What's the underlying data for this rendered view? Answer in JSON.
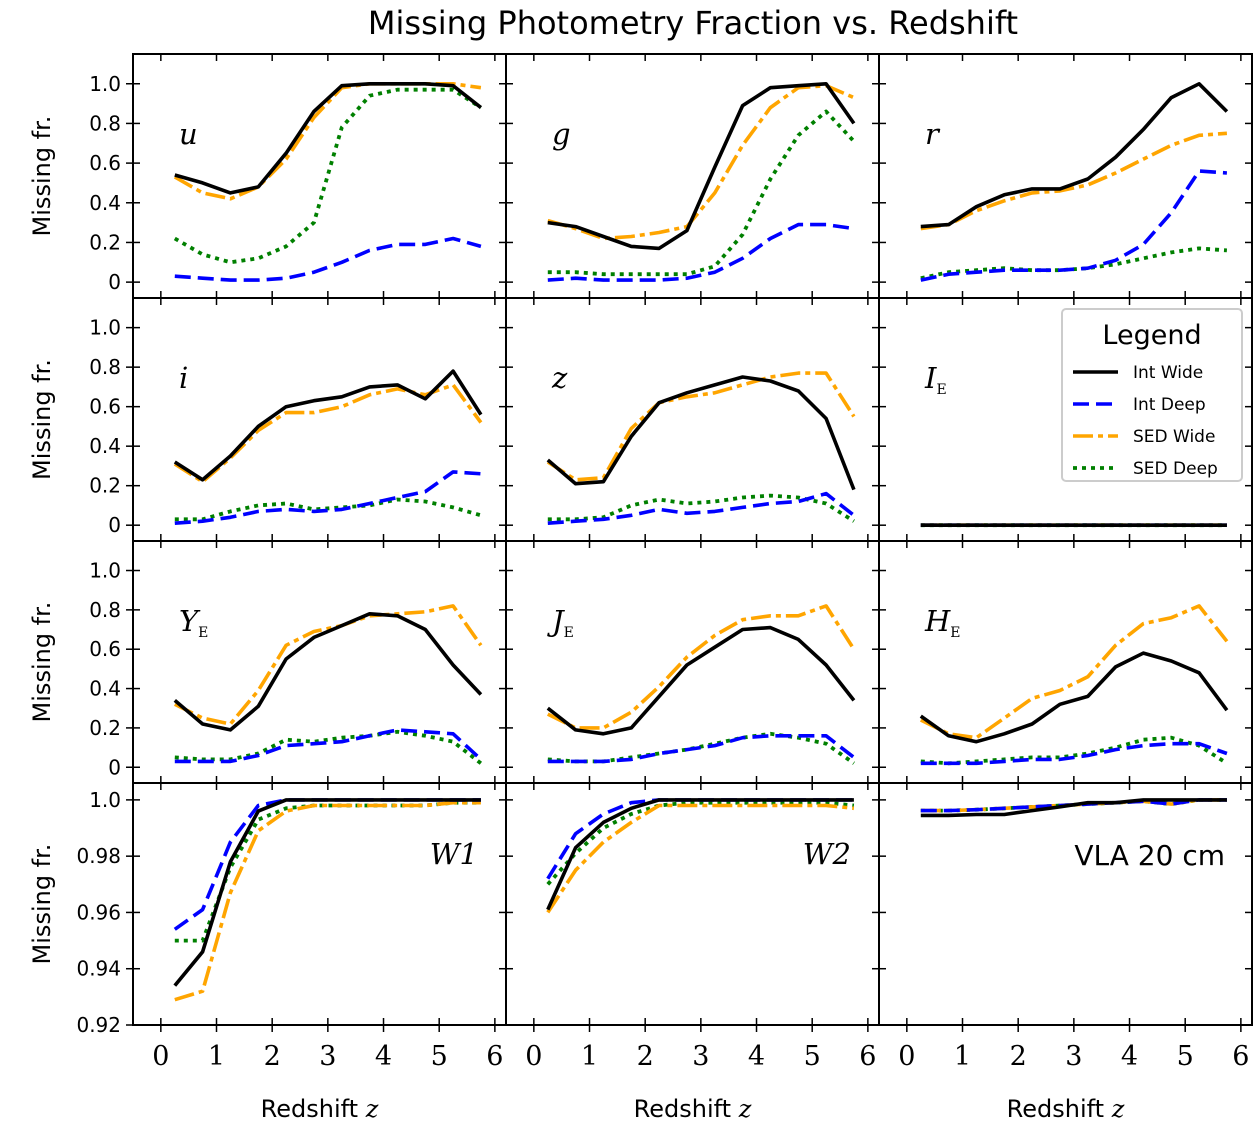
{
  "title": "Missing Photometry Fraction vs. Redshift",
  "axis_labels": {
    "ylabel": "Missing fr.",
    "xlabel_text": "Redshift",
    "xlabel_symbol": "z"
  },
  "legend": {
    "title": "Legend",
    "entries": [
      "Int Wide",
      "Int Deep",
      "SED Wide",
      "SED Deep"
    ],
    "placement": "top-right of the I_E panel"
  },
  "colors": {
    "Int Wide": "#000000",
    "Int Deep": "#0000ff",
    "SED Wide": "#ffa500",
    "SED Deep": "#008000"
  },
  "chart_data": {
    "type": "line",
    "layout": "4x3 grid of panels, shared x axis per column, shared y axis per row",
    "x": [
      0.25,
      0.75,
      1.25,
      1.75,
      2.25,
      2.75,
      3.25,
      3.75,
      4.25,
      4.75,
      5.25,
      5.75
    ],
    "xlim": [
      -0.5,
      6.2
    ],
    "xticks": [
      "0",
      "1",
      "2",
      "3",
      "4",
      "5",
      "6"
    ],
    "rows": [
      {
        "ylim": [
          -0.08,
          1.15
        ],
        "yticks": [
          "0",
          "0.2",
          "0.4",
          "0.6",
          "0.8",
          "1.0"
        ]
      },
      {
        "ylim": [
          -0.08,
          1.15
        ],
        "yticks": [
          "0",
          "0.2",
          "0.4",
          "0.6",
          "0.8",
          "1.0"
        ]
      },
      {
        "ylim": [
          -0.08,
          1.15
        ],
        "yticks": [
          "0",
          "0.2",
          "0.4",
          "0.6",
          "0.8",
          "1.0"
        ]
      },
      {
        "ylim": [
          0.92,
          1.006
        ],
        "yticks": [
          "0.92",
          "0.94",
          "0.96",
          "0.98",
          "1.0"
        ]
      }
    ],
    "panels": [
      {
        "label_main": "u",
        "label_sub": "",
        "italic": true,
        "series": {
          "Int Wide": [
            0.54,
            0.5,
            0.45,
            0.48,
            0.65,
            0.86,
            0.99,
            1.0,
            1.0,
            1.0,
            0.99,
            0.88
          ],
          "Int Deep": [
            0.03,
            0.02,
            0.01,
            0.01,
            0.02,
            0.05,
            0.1,
            0.16,
            0.19,
            0.19,
            0.22,
            0.18
          ],
          "SED Wide": [
            0.53,
            0.45,
            0.42,
            0.48,
            0.62,
            0.83,
            0.98,
            1.0,
            1.0,
            1.0,
            1.0,
            0.98
          ],
          "SED Deep": [
            0.22,
            0.14,
            0.1,
            0.12,
            0.18,
            0.3,
            0.78,
            0.94,
            0.97,
            0.97,
            0.97,
            0.88
          ]
        }
      },
      {
        "label_main": "g",
        "label_sub": "",
        "italic": true,
        "series": {
          "Int Wide": [
            0.3,
            0.28,
            0.23,
            0.18,
            0.17,
            0.26,
            0.58,
            0.89,
            0.98,
            0.99,
            1.0,
            0.8
          ],
          "Int Deep": [
            0.01,
            0.02,
            0.01,
            0.01,
            0.01,
            0.02,
            0.05,
            0.12,
            0.22,
            0.29,
            0.29,
            0.27
          ],
          "SED Wide": [
            0.31,
            0.27,
            0.22,
            0.23,
            0.25,
            0.28,
            0.45,
            0.69,
            0.88,
            0.98,
            0.99,
            0.93
          ],
          "SED Deep": [
            0.05,
            0.05,
            0.04,
            0.04,
            0.04,
            0.04,
            0.08,
            0.24,
            0.52,
            0.74,
            0.86,
            0.71
          ]
        }
      },
      {
        "label_main": "r",
        "label_sub": "",
        "italic": true,
        "series": {
          "Int Wide": [
            0.28,
            0.29,
            0.38,
            0.44,
            0.47,
            0.47,
            0.52,
            0.63,
            0.77,
            0.93,
            1.0,
            0.86
          ],
          "Int Deep": [
            0.01,
            0.04,
            0.05,
            0.06,
            0.06,
            0.06,
            0.07,
            0.11,
            0.19,
            0.35,
            0.56,
            0.55
          ],
          "SED Wide": [
            0.27,
            0.29,
            0.36,
            0.41,
            0.45,
            0.46,
            0.49,
            0.55,
            0.62,
            0.69,
            0.74,
            0.75
          ],
          "SED Deep": [
            0.02,
            0.05,
            0.06,
            0.07,
            0.06,
            0.06,
            0.07,
            0.09,
            0.12,
            0.15,
            0.17,
            0.16
          ]
        }
      },
      {
        "label_main": "i",
        "label_sub": "",
        "italic": true,
        "series": {
          "Int Wide": [
            0.32,
            0.23,
            0.35,
            0.5,
            0.6,
            0.63,
            0.65,
            0.7,
            0.71,
            0.64,
            0.78,
            0.56
          ],
          "Int Deep": [
            0.01,
            0.02,
            0.04,
            0.07,
            0.08,
            0.07,
            0.08,
            0.11,
            0.14,
            0.17,
            0.27,
            0.26
          ],
          "SED Wide": [
            0.31,
            0.22,
            0.34,
            0.48,
            0.57,
            0.57,
            0.6,
            0.66,
            0.69,
            0.66,
            0.71,
            0.52
          ],
          "SED Deep": [
            0.03,
            0.03,
            0.07,
            0.1,
            0.11,
            0.08,
            0.09,
            0.1,
            0.13,
            0.12,
            0.09,
            0.05
          ]
        }
      },
      {
        "label_main": "z",
        "label_sub": "",
        "italic": true,
        "series": {
          "Int Wide": [
            0.33,
            0.21,
            0.22,
            0.45,
            0.62,
            0.67,
            0.71,
            0.75,
            0.73,
            0.68,
            0.54,
            0.18
          ],
          "Int Deep": [
            0.01,
            0.02,
            0.03,
            0.05,
            0.08,
            0.06,
            0.07,
            0.09,
            0.11,
            0.12,
            0.16,
            0.05
          ],
          "SED Wide": [
            0.32,
            0.23,
            0.24,
            0.49,
            0.62,
            0.65,
            0.67,
            0.71,
            0.75,
            0.77,
            0.77,
            0.55
          ],
          "SED Deep": [
            0.03,
            0.03,
            0.04,
            0.1,
            0.13,
            0.11,
            0.12,
            0.14,
            0.15,
            0.14,
            0.11,
            0.02
          ]
        }
      },
      {
        "label_main": "I",
        "label_sub": "E",
        "italic": true,
        "series": {
          "Int Wide": [
            0,
            0,
            0,
            0,
            0,
            0,
            0,
            0,
            0,
            0,
            0,
            0
          ],
          "Int Deep": [
            0,
            0,
            0,
            0,
            0,
            0,
            0,
            0,
            0,
            0,
            0,
            0
          ],
          "SED Wide": [
            0,
            0,
            0,
            0,
            0,
            0,
            0,
            0,
            0,
            0,
            0,
            0
          ],
          "SED Deep": [
            0,
            0,
            0,
            0,
            0,
            0,
            0,
            0,
            0,
            0,
            0,
            0
          ]
        }
      },
      {
        "label_main": "Y",
        "label_sub": "E",
        "italic": true,
        "series": {
          "Int Wide": [
            0.34,
            0.22,
            0.19,
            0.31,
            0.55,
            0.66,
            0.72,
            0.78,
            0.77,
            0.7,
            0.52,
            0.37
          ],
          "Int Deep": [
            0.03,
            0.03,
            0.03,
            0.06,
            0.11,
            0.12,
            0.13,
            0.16,
            0.19,
            0.18,
            0.17,
            0.04
          ],
          "SED Wide": [
            0.32,
            0.25,
            0.22,
            0.39,
            0.62,
            0.69,
            0.72,
            0.77,
            0.78,
            0.79,
            0.82,
            0.62
          ],
          "SED Deep": [
            0.05,
            0.04,
            0.04,
            0.07,
            0.14,
            0.13,
            0.15,
            0.16,
            0.18,
            0.16,
            0.13,
            0.02
          ]
        }
      },
      {
        "label_main": "J",
        "label_sub": "E",
        "italic": true,
        "series": {
          "Int Wide": [
            0.3,
            0.19,
            0.17,
            0.2,
            0.36,
            0.52,
            0.61,
            0.7,
            0.71,
            0.65,
            0.52,
            0.34
          ],
          "Int Deep": [
            0.03,
            0.03,
            0.03,
            0.04,
            0.07,
            0.09,
            0.11,
            0.15,
            0.16,
            0.16,
            0.16,
            0.05
          ],
          "SED Wide": [
            0.27,
            0.2,
            0.2,
            0.28,
            0.41,
            0.56,
            0.67,
            0.75,
            0.77,
            0.77,
            0.82,
            0.6
          ],
          "SED Deep": [
            0.04,
            0.03,
            0.03,
            0.05,
            0.07,
            0.09,
            0.12,
            0.15,
            0.17,
            0.15,
            0.12,
            0.02
          ]
        }
      },
      {
        "label_main": "H",
        "label_sub": "E",
        "italic": true,
        "series": {
          "Int Wide": [
            0.26,
            0.16,
            0.13,
            0.17,
            0.22,
            0.32,
            0.36,
            0.51,
            0.58,
            0.54,
            0.48,
            0.29
          ],
          "Int Deep": [
            0.02,
            0.02,
            0.02,
            0.03,
            0.04,
            0.04,
            0.06,
            0.09,
            0.11,
            0.12,
            0.12,
            0.07
          ],
          "SED Wide": [
            0.24,
            0.17,
            0.15,
            0.25,
            0.35,
            0.39,
            0.46,
            0.62,
            0.73,
            0.76,
            0.82,
            0.64
          ],
          "SED Deep": [
            0.03,
            0.02,
            0.03,
            0.04,
            0.05,
            0.05,
            0.07,
            0.1,
            0.14,
            0.15,
            0.11,
            0.02
          ]
        }
      },
      {
        "label_main": "W1",
        "label_sub": "",
        "italic": true,
        "series": {
          "Int Wide": [
            0.934,
            0.946,
            0.978,
            0.996,
            1.0,
            1.0,
            1.0,
            1.0,
            1.0,
            1.0,
            1.0,
            1.0
          ],
          "Int Deep": [
            0.954,
            0.961,
            0.985,
            0.998,
            1.0,
            1.0,
            1.0,
            1.0,
            1.0,
            1.0,
            1.0,
            1.0
          ],
          "SED Wide": [
            0.929,
            0.932,
            0.967,
            0.989,
            0.996,
            0.998,
            0.998,
            0.998,
            0.998,
            0.998,
            0.999,
            0.999
          ],
          "SED Deep": [
            0.95,
            0.95,
            0.976,
            0.993,
            0.997,
            0.998,
            0.998,
            0.998,
            0.998,
            0.998,
            0.999,
            0.999
          ]
        }
      },
      {
        "label_main": "W2",
        "label_sub": "",
        "italic": true,
        "series": {
          "Int Wide": [
            0.961,
            0.983,
            0.992,
            0.997,
            1.0,
            1.0,
            1.0,
            1.0,
            1.0,
            1.0,
            1.0,
            1.0
          ],
          "Int Deep": [
            0.972,
            0.988,
            0.995,
            0.999,
            1.0,
            1.0,
            1.0,
            1.0,
            1.0,
            1.0,
            1.0,
            1.0
          ],
          "SED Wide": [
            0.96,
            0.975,
            0.985,
            0.992,
            0.998,
            0.998,
            0.998,
            0.998,
            0.998,
            0.998,
            0.998,
            0.997
          ],
          "SED Deep": [
            0.97,
            0.981,
            0.99,
            0.995,
            0.998,
            0.999,
            0.999,
            0.999,
            0.999,
            0.999,
            0.999,
            0.998
          ]
        }
      },
      {
        "label_main": "VLA 20 cm",
        "label_sub": "",
        "italic": false,
        "series": {
          "Int Wide": [
            0.9945,
            0.9945,
            0.9948,
            0.9948,
            0.9962,
            0.9975,
            0.999,
            0.999,
            1.0,
            1.0,
            1.0,
            1.0
          ],
          "Int Deep": [
            0.9962,
            0.9962,
            0.9965,
            0.997,
            0.9975,
            0.998,
            0.9985,
            0.999,
            0.9995,
            0.9985,
            1.0,
            1.0
          ],
          "SED Wide": [
            0.9962,
            0.9962,
            0.9965,
            0.997,
            0.9975,
            0.998,
            0.9985,
            0.999,
            0.9995,
            0.9985,
            1.0,
            1.0
          ],
          "SED Deep": [
            0.9962,
            0.9962,
            0.9965,
            0.997,
            0.9975,
            0.998,
            0.9985,
            0.999,
            0.9995,
            0.9985,
            1.0,
            1.0
          ]
        }
      }
    ]
  }
}
